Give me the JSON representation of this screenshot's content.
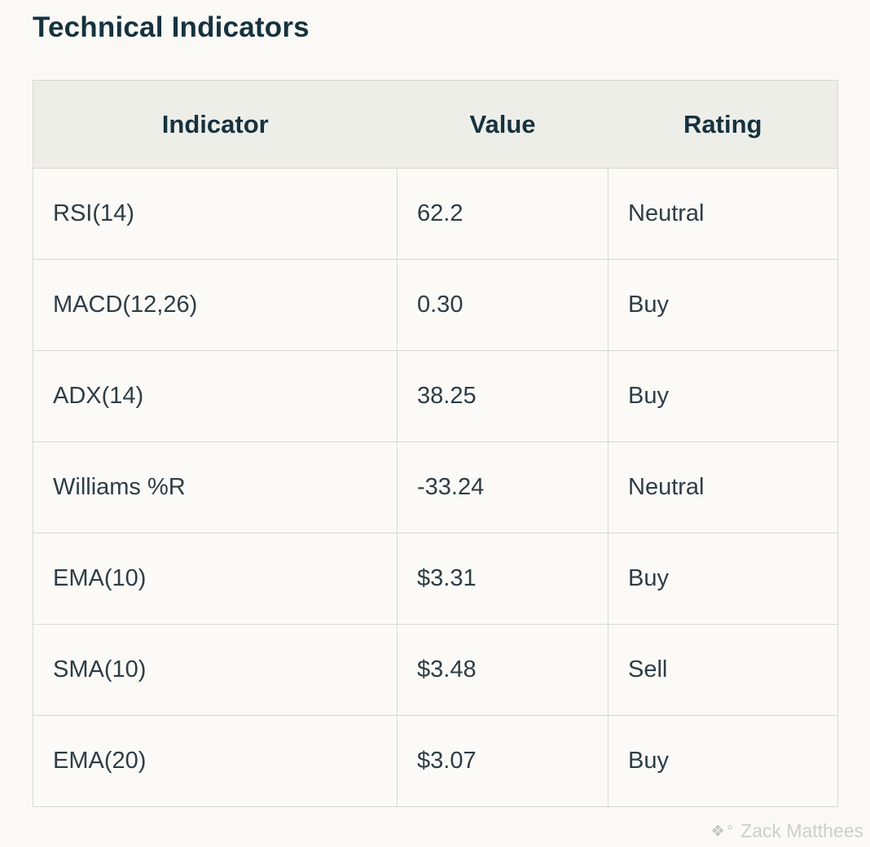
{
  "page": {
    "title": "Technical Indicators",
    "background_color": "#faf9f6"
  },
  "watermark": {
    "icon": "compass-diamond-icon",
    "icon_glyph": "❖°",
    "text": "Zack Matthees",
    "color": "#cfcfc9"
  },
  "table": {
    "header_bg_color": "#edeee8",
    "header_text_color": "#16323e",
    "body_text_color": "#2e3d45",
    "border_color": "#d7d8d2",
    "columns": [
      "Indicator",
      "Value",
      "Rating"
    ],
    "rows": [
      {
        "indicator": "RSI(14)",
        "value": "62.2",
        "rating": "Neutral"
      },
      {
        "indicator": "MACD(12,26)",
        "value": "0.30",
        "rating": "Buy"
      },
      {
        "indicator": "ADX(14)",
        "value": "38.25",
        "rating": "Buy"
      },
      {
        "indicator": "Williams %R",
        "value": "-33.24",
        "rating": "Neutral"
      },
      {
        "indicator": "EMA(10)",
        "value": "$3.31",
        "rating": "Buy"
      },
      {
        "indicator": "SMA(10)",
        "value": "$3.48",
        "rating": "Sell"
      },
      {
        "indicator": "EMA(20)",
        "value": "$3.07",
        "rating": "Buy"
      }
    ]
  },
  "chart_data": {
    "type": "table",
    "title": "Technical Indicators",
    "columns": [
      "Indicator",
      "Value",
      "Rating"
    ],
    "rows": [
      [
        "RSI(14)",
        "62.2",
        "Neutral"
      ],
      [
        "MACD(12,26)",
        "0.30",
        "Buy"
      ],
      [
        "ADX(14)",
        "38.25",
        "Buy"
      ],
      [
        "Williams %R",
        "-33.24",
        "Neutral"
      ],
      [
        "EMA(10)",
        "$3.31",
        "Buy"
      ],
      [
        "SMA(10)",
        "$3.48",
        "Sell"
      ],
      [
        "EMA(20)",
        "$3.07",
        "Buy"
      ]
    ]
  }
}
